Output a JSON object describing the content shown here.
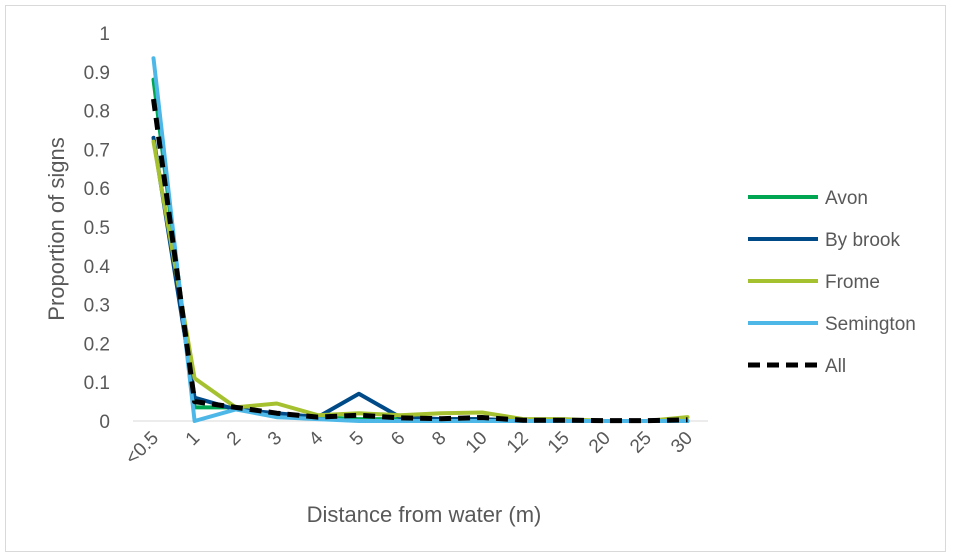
{
  "chart_data": {
    "type": "line",
    "title": "",
    "xlabel": "Distance from water (m)",
    "ylabel": "Proportion of signs",
    "categories": [
      "<0.5",
      "1",
      "2",
      "3",
      "4",
      "5",
      "6",
      "8",
      "10",
      "12",
      "15",
      "20",
      "25",
      "30"
    ],
    "yticks": [
      "0",
      "0.1",
      "0.2",
      "0.3",
      "0.4",
      "0.5",
      "0.6",
      "0.7",
      "0.8",
      "0.9",
      "1"
    ],
    "ylim": [
      0,
      1
    ],
    "grid": false,
    "legend_position": "right",
    "series": [
      {
        "name": "Avon",
        "color": "#00a651",
        "dashed": false,
        "values": [
          0.88,
          0.035,
          0.035,
          0.01,
          0.01,
          0.005,
          0.005,
          0.005,
          0.005,
          0.0,
          0.0,
          0.0,
          0.0,
          0.0
        ]
      },
      {
        "name": "By brook",
        "color": "#004a87",
        "dashed": false,
        "values": [
          0.73,
          0.06,
          0.03,
          0.02,
          0.01,
          0.07,
          0.01,
          0.005,
          0.005,
          0.0,
          0.0,
          0.0,
          0.0,
          0.0
        ]
      },
      {
        "name": "Frome",
        "color": "#a6c12f",
        "dashed": false,
        "values": [
          0.72,
          0.11,
          0.035,
          0.045,
          0.015,
          0.02,
          0.015,
          0.02,
          0.022,
          0.005,
          0.005,
          0.0,
          0.0,
          0.01
        ]
      },
      {
        "name": "Semington",
        "color": "#4db8e8",
        "dashed": false,
        "values": [
          0.935,
          0.0,
          0.03,
          0.01,
          0.005,
          0.0,
          0.0,
          0.0,
          0.0,
          0.0,
          0.0,
          0.0,
          0.0,
          0.0
        ]
      },
      {
        "name": "All",
        "color": "#000000",
        "dashed": true,
        "values": [
          0.83,
          0.05,
          0.035,
          0.02,
          0.01,
          0.015,
          0.008,
          0.006,
          0.009,
          0.002,
          0.002,
          0.001,
          0.001,
          0.003
        ]
      }
    ]
  }
}
